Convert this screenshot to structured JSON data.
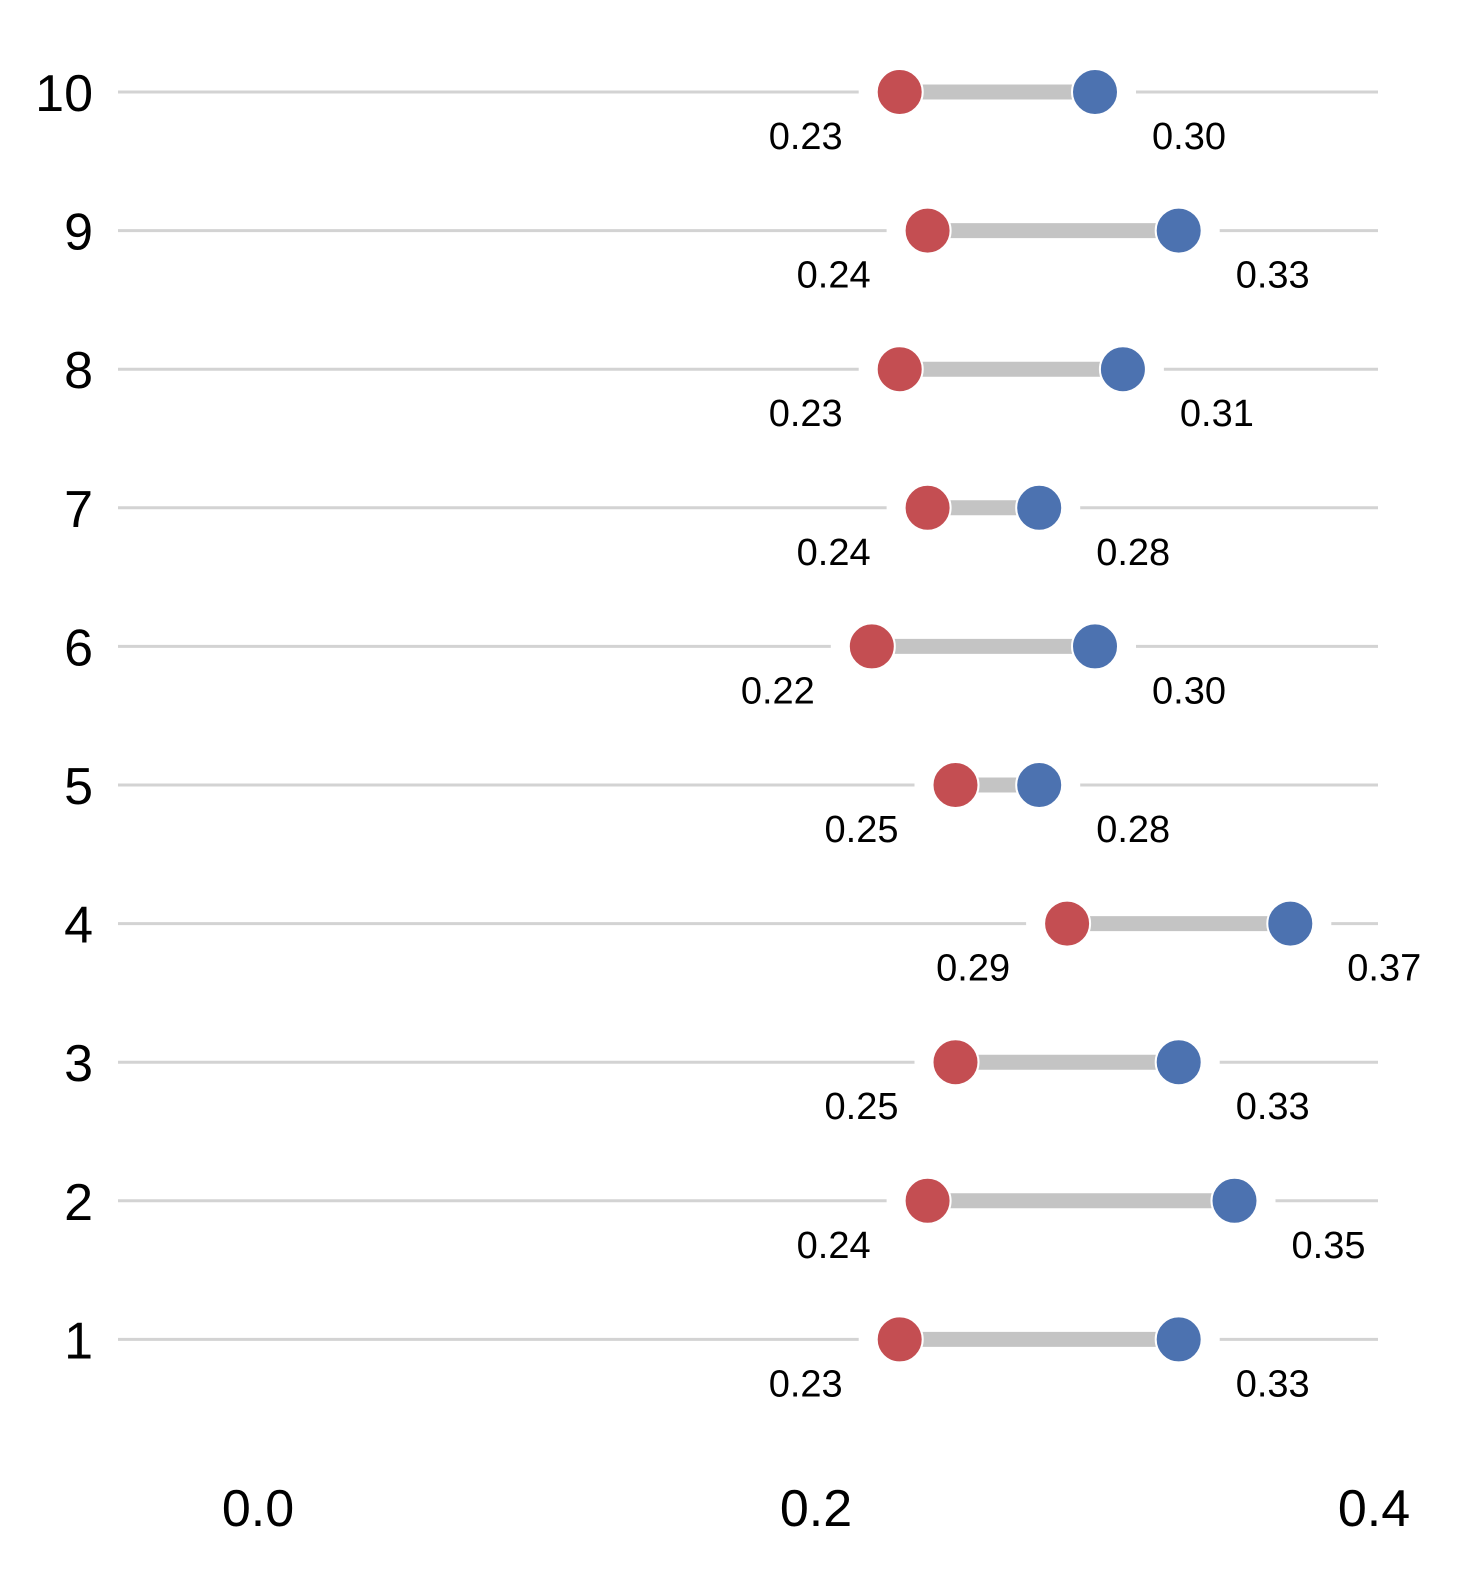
{
  "chart_data": {
    "type": "dumbbell",
    "title": "",
    "xlabel": "",
    "ylabel": "",
    "xlim": [
      -0.05,
      0.4
    ],
    "x_ticks": [
      {
        "value": 0.0,
        "label": "0.0"
      },
      {
        "value": 0.2,
        "label": "0.2"
      },
      {
        "value": 0.4,
        "label": "0.4"
      }
    ],
    "grid": true,
    "legend": "none",
    "colors": {
      "low": "#c44e52",
      "high": "#4c72b0",
      "connector": "#c4c4c4",
      "gridline": "#d3d3d3"
    },
    "series": [
      {
        "name": "low",
        "color": "#c44e52"
      },
      {
        "name": "high",
        "color": "#4c72b0"
      }
    ],
    "rows": [
      {
        "label": "10",
        "low": 0.23,
        "low_label": "0.23",
        "high": 0.3,
        "high_label": "0.30"
      },
      {
        "label": "9",
        "low": 0.24,
        "low_label": "0.24",
        "high": 0.33,
        "high_label": "0.33"
      },
      {
        "label": "8",
        "low": 0.23,
        "low_label": "0.23",
        "high": 0.31,
        "high_label": "0.31"
      },
      {
        "label": "7",
        "low": 0.24,
        "low_label": "0.24",
        "high": 0.28,
        "high_label": "0.28"
      },
      {
        "label": "6",
        "low": 0.22,
        "low_label": "0.22",
        "high": 0.3,
        "high_label": "0.30"
      },
      {
        "label": "5",
        "low": 0.25,
        "low_label": "0.25",
        "high": 0.28,
        "high_label": "0.28"
      },
      {
        "label": "4",
        "low": 0.29,
        "low_label": "0.29",
        "high": 0.37,
        "high_label": "0.37"
      },
      {
        "label": "3",
        "low": 0.25,
        "low_label": "0.25",
        "high": 0.33,
        "high_label": "0.33"
      },
      {
        "label": "2",
        "low": 0.24,
        "low_label": "0.24",
        "high": 0.35,
        "high_label": "0.35"
      },
      {
        "label": "1",
        "low": 0.23,
        "low_label": "0.23",
        "high": 0.33,
        "high_label": "0.33"
      }
    ]
  }
}
